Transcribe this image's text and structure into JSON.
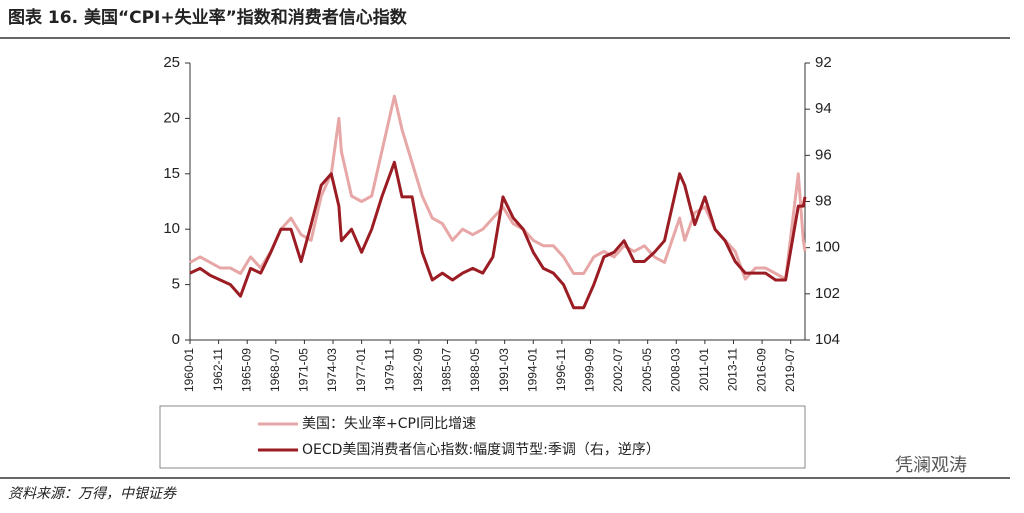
{
  "chart_data": {
    "type": "line",
    "title": "图表 16. 美国“CPI+失业率”指数和消费者信心指数",
    "source": "资料来源：万得，中银证券",
    "watermark": "凭澜观涛",
    "x": [
      "1960-01",
      "1961-01",
      "1962-01",
      "1963-01",
      "1964-01",
      "1965-01",
      "1966-01",
      "1967-01",
      "1968-01",
      "1969-01",
      "1970-01",
      "1971-01",
      "1972-01",
      "1973-01",
      "1974-01",
      "1974-10",
      "1975-01",
      "1976-01",
      "1977-01",
      "1978-01",
      "1979-01",
      "1980-04",
      "1981-01",
      "1982-01",
      "1983-01",
      "1984-01",
      "1985-01",
      "1986-01",
      "1987-01",
      "1988-01",
      "1989-01",
      "1990-01",
      "1991-01",
      "1992-01",
      "1993-01",
      "1994-01",
      "1995-01",
      "1996-01",
      "1997-01",
      "1998-01",
      "1999-01",
      "2000-01",
      "2001-01",
      "2002-01",
      "2003-01",
      "2004-01",
      "2005-01",
      "2006-01",
      "2007-01",
      "2008-07",
      "2009-01",
      "2010-01",
      "2011-01",
      "2012-01",
      "2013-01",
      "2014-01",
      "2015-01",
      "2016-01",
      "2017-01",
      "2018-01",
      "2019-01",
      "2020-04",
      "2020-10",
      "2020-12"
    ],
    "xlim": [
      "1960-01",
      "2020-12"
    ],
    "xticks": [
      "1960-01",
      "1962-11",
      "1965-09",
      "1968-07",
      "1971-05",
      "1974-03",
      "1977-01",
      "1979-11",
      "1982-09",
      "1985-07",
      "1988-05",
      "1991-03",
      "1994-01",
      "1996-11",
      "1999-09",
      "2002-07",
      "2005-05",
      "2008-03",
      "2011-01",
      "2013-11",
      "2016-09",
      "2019-07"
    ],
    "ylim": [
      0,
      25
    ],
    "yticks": [
      0,
      5,
      10,
      15,
      20,
      25
    ],
    "y2lim": [
      92,
      104
    ],
    "y2ticks": [
      92,
      94,
      96,
      98,
      100,
      102,
      104
    ],
    "y2_inverted": true,
    "legend": "bottom",
    "series": [
      {
        "name": "美国：失业率+CPI同比增速",
        "color": "#e8a7a7",
        "values": [
          7,
          7.5,
          7,
          6.5,
          6.5,
          6,
          7.5,
          6.5,
          8,
          10,
          11,
          9.5,
          9,
          13,
          15,
          20,
          17,
          13,
          12.5,
          13,
          17,
          22,
          19,
          16,
          13,
          11,
          10.5,
          9,
          10,
          9.5,
          10,
          11,
          12,
          10.5,
          10,
          9,
          8.5,
          8.5,
          7.5,
          6,
          6,
          7.5,
          8,
          7.5,
          8.5,
          8,
          8.5,
          7.5,
          7,
          11,
          9,
          11.5,
          12,
          10,
          9,
          8,
          5.5,
          6.5,
          6.5,
          6,
          5.5,
          15,
          9,
          8
        ]
      },
      {
        "name": "OECD美国消费者信心指数:幅度调节型:季调（右，逆序）",
        "color": "#9b1c23",
        "axis": "y2",
        "values": [
          101.1,
          100.9,
          101.2,
          101.4,
          101.6,
          102.1,
          100.9,
          101.1,
          100.2,
          99.2,
          99.2,
          100.6,
          99,
          97.3,
          96.8,
          98.2,
          99.7,
          99.2,
          100.2,
          99.2,
          97.8,
          96.3,
          97.8,
          97.8,
          100.2,
          101.4,
          101.1,
          101.4,
          101.1,
          100.9,
          101.1,
          100.4,
          97.8,
          98.7,
          99.2,
          100.2,
          100.9,
          101.1,
          101.6,
          102.6,
          102.6,
          101.6,
          100.4,
          100.2,
          99.7,
          100.6,
          100.6,
          100.2,
          99.7,
          96.8,
          97.3,
          99,
          97.8,
          99.2,
          99.7,
          100.6,
          101.1,
          101.1,
          101.1,
          101.4,
          101.4,
          98.2,
          98.2,
          97.8
        ]
      }
    ]
  }
}
